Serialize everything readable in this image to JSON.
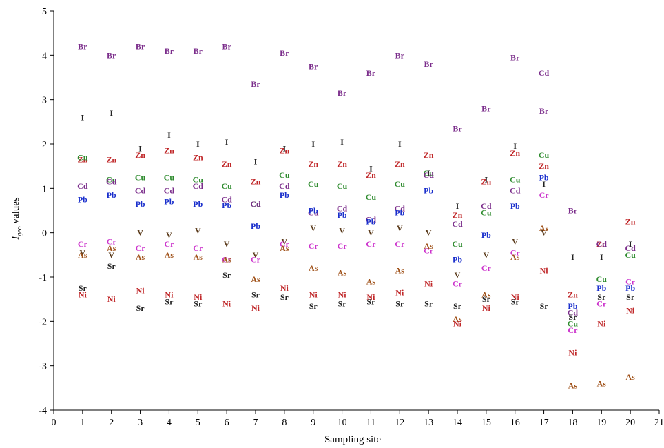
{
  "chart_data": {
    "type": "scatter",
    "xlabel": "Sampling site",
    "ylabel_main": "I",
    "ylabel_sub": "geo",
    "ylabel_rest": " values",
    "xlim": [
      0,
      21
    ],
    "ylim": [
      -4,
      5
    ],
    "xticks": [
      0,
      1,
      2,
      3,
      4,
      5,
      6,
      7,
      8,
      9,
      10,
      11,
      12,
      13,
      14,
      15,
      16,
      17,
      18,
      19,
      20,
      21
    ],
    "yticks": [
      -4,
      -3,
      -2,
      -1,
      0,
      1,
      2,
      3,
      4,
      5
    ],
    "grid": false,
    "series": [
      {
        "name": "Br",
        "color": "#7b2d8b",
        "x": [
          1,
          2,
          3,
          4,
          5,
          6,
          7,
          8,
          9,
          10,
          11,
          12,
          13,
          14,
          15,
          16,
          17,
          18
        ],
        "y": [
          4.2,
          4.0,
          4.2,
          4.1,
          4.1,
          4.2,
          3.35,
          4.05,
          3.75,
          3.15,
          3.6,
          4.0,
          3.8,
          2.35,
          2.8,
          3.95,
          2.75,
          0.5
        ]
      },
      {
        "name": "I",
        "color": "#222222",
        "x": [
          1,
          2,
          3,
          4,
          5,
          6,
          7,
          8,
          9,
          10,
          11,
          12,
          13,
          14,
          15,
          16,
          17,
          18,
          19,
          20
        ],
        "y": [
          2.6,
          2.7,
          1.9,
          2.2,
          2.0,
          2.05,
          1.6,
          1.9,
          2.0,
          2.05,
          1.45,
          2.0,
          1.35,
          0.6,
          1.2,
          1.95,
          1.1,
          -0.55,
          -0.55,
          -0.25
        ]
      },
      {
        "name": "Zn",
        "color": "#c0282a",
        "x": [
          1,
          2,
          3,
          4,
          5,
          6,
          7,
          8,
          9,
          10,
          11,
          12,
          13,
          14,
          15,
          16,
          17,
          18,
          19,
          20
        ],
        "y": [
          1.65,
          1.65,
          1.75,
          1.85,
          1.7,
          1.55,
          1.15,
          1.85,
          1.55,
          1.55,
          1.3,
          1.55,
          1.75,
          0.4,
          1.15,
          1.8,
          1.5,
          -1.4,
          -0.25,
          0.25
        ]
      },
      {
        "name": "Cu",
        "color": "#2e8b2e",
        "x": [
          1,
          2,
          3,
          4,
          5,
          6,
          7,
          8,
          9,
          10,
          11,
          12,
          13,
          14,
          15,
          16,
          17,
          18,
          19,
          20
        ],
        "y": [
          1.7,
          1.2,
          1.25,
          1.25,
          1.2,
          1.05,
          0.65,
          1.3,
          1.1,
          1.05,
          0.8,
          1.1,
          1.35,
          -0.25,
          0.45,
          1.2,
          1.75,
          -2.05,
          -1.05,
          -0.5
        ]
      },
      {
        "name": "Cd",
        "color": "#7b2d8b",
        "x": [
          1,
          2,
          3,
          4,
          5,
          6,
          7,
          8,
          9,
          10,
          11,
          12,
          13,
          14,
          15,
          16,
          17,
          18,
          19,
          20
        ],
        "y": [
          1.05,
          1.15,
          0.95,
          0.95,
          1.05,
          0.75,
          0.65,
          1.05,
          0.45,
          0.55,
          0.3,
          0.55,
          1.3,
          0.2,
          0.6,
          0.95,
          3.6,
          -1.8,
          -0.25,
          -0.35
        ]
      },
      {
        "name": "Pb",
        "color": "#1a2fcc",
        "x": [
          1,
          2,
          3,
          4,
          5,
          6,
          7,
          8,
          9,
          10,
          11,
          12,
          13,
          14,
          15,
          16,
          17,
          18,
          19,
          20
        ],
        "y": [
          0.75,
          0.85,
          0.65,
          0.7,
          0.65,
          0.62,
          0.15,
          0.85,
          0.5,
          0.4,
          0.25,
          0.45,
          0.95,
          -0.6,
          -0.05,
          0.6,
          1.25,
          -1.65,
          -1.25,
          -1.25
        ]
      },
      {
        "name": "V",
        "color": "#5a3a1a",
        "x": [
          1,
          2,
          3,
          4,
          5,
          6,
          7,
          8,
          9,
          10,
          11,
          12,
          13,
          14,
          15,
          16,
          17
        ],
        "y": [
          -0.45,
          -0.5,
          0.0,
          -0.05,
          0.05,
          -0.25,
          -0.5,
          -0.2,
          0.1,
          0.05,
          0.0,
          0.1,
          0.0,
          -0.95,
          -0.5,
          -0.2,
          0.0
        ]
      },
      {
        "name": "Cr",
        "color": "#cc33cc",
        "x": [
          1,
          2,
          3,
          4,
          5,
          6,
          7,
          8,
          9,
          10,
          11,
          12,
          13,
          14,
          15,
          16,
          17,
          18,
          19,
          20
        ],
        "y": [
          -0.25,
          -0.2,
          -0.35,
          -0.25,
          -0.35,
          -0.6,
          -0.6,
          -0.25,
          -0.3,
          -0.3,
          -0.25,
          -0.25,
          -0.4,
          -1.15,
          -0.8,
          -0.45,
          0.85,
          -2.2,
          -1.6,
          -1.1
        ]
      },
      {
        "name": "As",
        "color": "#a0521a",
        "x": [
          1,
          2,
          3,
          4,
          5,
          6,
          7,
          8,
          9,
          10,
          11,
          12,
          13,
          14,
          15,
          16,
          17,
          18,
          19,
          20
        ],
        "y": [
          -0.5,
          -0.35,
          -0.55,
          -0.5,
          -0.55,
          -0.6,
          -1.05,
          -0.35,
          -0.8,
          -0.9,
          -1.1,
          -0.85,
          -0.3,
          -1.95,
          -1.4,
          -0.55,
          0.1,
          -3.45,
          -3.4,
          -3.25
        ]
      },
      {
        "name": "Sr",
        "color": "#222222",
        "x": [
          1,
          2,
          3,
          4,
          5,
          6,
          7,
          8,
          9,
          10,
          11,
          12,
          13,
          14,
          15,
          16,
          17,
          18,
          19,
          20
        ],
        "y": [
          -1.25,
          -0.75,
          -1.7,
          -1.55,
          -1.6,
          -0.95,
          -1.4,
          -1.45,
          -1.65,
          -1.6,
          -1.55,
          -1.6,
          -1.6,
          -1.65,
          -1.5,
          -1.55,
          -1.65,
          -1.9,
          -1.45,
          -1.45
        ]
      },
      {
        "name": "Ni",
        "color": "#c0282a",
        "x": [
          1,
          2,
          3,
          4,
          5,
          6,
          7,
          8,
          9,
          10,
          11,
          12,
          13,
          14,
          15,
          16,
          17,
          18,
          19,
          20
        ],
        "y": [
          -1.4,
          -1.5,
          -1.3,
          -1.4,
          -1.45,
          -1.6,
          -1.7,
          -1.25,
          -1.4,
          -1.4,
          -1.45,
          -1.35,
          -1.15,
          -2.05,
          -1.7,
          -1.45,
          -0.85,
          -2.7,
          -2.05,
          -1.75
        ]
      }
    ]
  }
}
